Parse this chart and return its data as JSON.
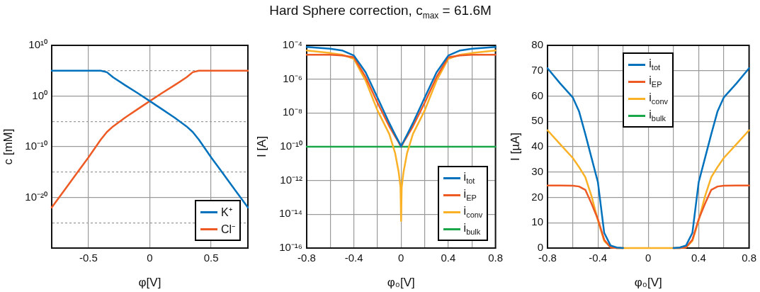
{
  "chart_data": [
    {
      "type": "line",
      "xlabel": "φ[V]",
      "ylabel": "c [mM]",
      "log": "y",
      "grid": true,
      "legend": "bottom right",
      "x": [
        -0.8,
        -0.7,
        -0.6,
        -0.5,
        -0.4,
        -0.35,
        -0.3,
        -0.2,
        -0.1,
        0,
        0.1,
        0.2,
        0.3,
        0.35,
        0.4,
        0.5,
        0.6,
        0.7,
        0.8
      ],
      "xlim": [
        -0.8,
        0.8
      ],
      "xticks": [
        -0.5,
        0,
        0.5
      ],
      "ylim": [
        1e-30,
        10000000000.0
      ],
      "yticks": [
        {
          "value": 10000000000.0,
          "label": "10¹⁰"
        },
        {
          "value": 100000.0,
          "label": null
        },
        {
          "value": 1,
          "label": "10⁰"
        },
        {
          "value": 1e-05,
          "label": null
        },
        {
          "value": 1e-10,
          "label": "10⁻¹⁰"
        },
        {
          "value": 1e-15,
          "label": null
        },
        {
          "value": 1e-20,
          "label": "10⁻²⁰"
        },
        {
          "value": 1e-25,
          "label": null
        }
      ],
      "series": [
        {
          "name": "K⁺",
          "color": "#0072bd",
          "values": [
            100000.0,
            100000.0,
            100000.0,
            100000.0,
            100000.0,
            50000.0,
            5000.0,
            130,
            4,
            0.1,
            0.0025,
            6e-05,
            1e-06,
            8e-08,
            2.5e-09,
            8e-13,
            4e-16,
            2e-19,
            1e-22
          ]
        },
        {
          "name": "Cl⁻",
          "color": "#ee5a24",
          "values": [
            1e-22,
            2e-19,
            4e-16,
            8e-13,
            2.5e-09,
            8e-08,
            1e-06,
            6e-05,
            0.0025,
            0.1,
            4,
            130,
            5000.0,
            50000.0,
            100000.0,
            100000.0,
            100000.0,
            100000.0,
            100000.0
          ]
        }
      ]
    },
    {
      "type": "line",
      "title": "Hard Sphere correction, c$_{max}$ = 61.6M",
      "xlabel": "φ₀[V]",
      "ylabel": "I [A]",
      "log": "y",
      "grid": true,
      "legend": "bottom right",
      "x": [
        -0.8,
        -0.6,
        -0.5,
        -0.4,
        -0.3,
        -0.2,
        -0.1,
        -0.05,
        -0.02,
        -0.005,
        0,
        0.005,
        0.02,
        0.05,
        0.1,
        0.2,
        0.3,
        0.4,
        0.5,
        0.6,
        0.8
      ],
      "xlim": [
        -0.8,
        0.8
      ],
      "xticks": [
        -0.8,
        {
          "value": -0.6,
          "label": null
        },
        -0.4,
        {
          "value": -0.2,
          "label": null
        },
        0,
        {
          "value": 0.2,
          "label": null
        },
        0.4,
        {
          "value": 0.6,
          "label": null
        },
        0.8
      ],
      "ylim": [
        1e-16,
        0.0001
      ],
      "yticks": [
        {
          "value": 0.0001,
          "label": "10⁻⁴"
        },
        {
          "value": 1e-06,
          "label": "10⁻⁶"
        },
        {
          "value": 1e-08,
          "label": "10⁻⁸"
        },
        {
          "value": 1e-10,
          "label": "10⁻¹⁰"
        },
        {
          "value": 1e-12,
          "label": "10⁻¹²"
        },
        {
          "value": 1e-14,
          "label": "10⁻¹⁴"
        },
        {
          "value": 1e-16,
          "label": "10⁻¹⁶"
        }
      ],
      "series": [
        {
          "name": "i$_{tot}$",
          "color": "#0072bd",
          "values": [
            8e-05,
            6.3e-05,
            5e-05,
            2.5e-05,
            2.5e-06,
            8e-08,
            2.5e-09,
            5e-10,
            2e-10,
            1.3e-10,
            1e-10,
            1.3e-10,
            2e-10,
            5e-10,
            2.5e-09,
            8e-08,
            2.5e-06,
            2.5e-05,
            5e-05,
            6.3e-05,
            8e-05
          ]
        },
        {
          "name": "i$_{EP}$",
          "color": "#ee5a24",
          "values": [
            2.8e-05,
            2.8e-05,
            2.5e-05,
            2e-05,
            1.3e-06,
            4e-08,
            1.6e-09,
            4e-10,
            1.8e-10,
            1.1e-10,
            1e-10,
            1.1e-10,
            1.8e-10,
            4e-10,
            1.6e-09,
            4e-08,
            1.3e-06,
            2e-05,
            2.5e-05,
            2.8e-05,
            2.8e-05
          ]
        },
        {
          "name": "i$_{conv}$",
          "color": "#fbb125",
          "values": [
            5e-05,
            3.5e-05,
            2.8e-05,
            1.6e-05,
            8e-07,
            1.4e-08,
            5.6e-10,
            4e-11,
            3e-12,
            4e-13,
            4e-15,
            4e-13,
            3e-12,
            4e-11,
            5.6e-10,
            1.4e-08,
            8e-07,
            1.6e-05,
            2.8e-05,
            3.5e-05,
            5e-05
          ]
        },
        {
          "name": "i$_{bulk}$",
          "color": "#1ca64a",
          "values": [
            1e-10,
            1e-10,
            1e-10,
            1e-10,
            1e-10,
            1e-10,
            1e-10,
            1e-10,
            1e-10,
            1e-10,
            1e-10,
            1e-10,
            1e-10,
            1e-10,
            1e-10,
            1e-10,
            1e-10,
            1e-10,
            1e-10,
            1e-10,
            1e-10
          ]
        }
      ]
    },
    {
      "type": "line",
      "xlabel": "φ₀[V]",
      "ylabel": "I [µA]",
      "grid": true,
      "legend": "top",
      "x": [
        -0.8,
        -0.7,
        -0.6,
        -0.55,
        -0.5,
        -0.45,
        -0.4,
        -0.35,
        -0.3,
        -0.25,
        -0.2,
        0,
        0.2,
        0.25,
        0.3,
        0.35,
        0.4,
        0.45,
        0.5,
        0.55,
        0.6,
        0.7,
        0.8
      ],
      "xlim": [
        -0.8,
        0.8
      ],
      "xticks": [
        -0.8,
        {
          "value": -0.6,
          "label": null
        },
        -0.4,
        {
          "value": -0.2,
          "label": null
        },
        0,
        {
          "value": 0.2,
          "label": null
        },
        0.4,
        {
          "value": 0.6,
          "label": null
        },
        0.8
      ],
      "ylim": [
        0,
        80
      ],
      "yticks": [
        0,
        10,
        20,
        30,
        40,
        50,
        60,
        70,
        80
      ],
      "series": [
        {
          "name": "i$_{tot}$",
          "color": "#0072bd",
          "values": [
            71,
            65,
            59.5,
            54,
            45,
            35.5,
            26,
            6,
            1,
            0.2,
            0,
            null,
            0,
            0.2,
            1,
            6,
            26,
            35.5,
            45,
            54,
            59.5,
            65,
            71
          ]
        },
        {
          "name": "i$_{EP}$",
          "color": "#ee5a24",
          "values": [
            24.7,
            24.7,
            24.6,
            24.3,
            23,
            17.5,
            11.4,
            3.3,
            0.3,
            0,
            0,
            null,
            0,
            0,
            0.3,
            3.3,
            11.4,
            17.5,
            23,
            24.3,
            24.6,
            24.7,
            24.7
          ]
        },
        {
          "name": "i$_{conv}$",
          "color": "#fbb125",
          "values": [
            46.5,
            41,
            35.6,
            32,
            28,
            20.4,
            10.9,
            2.8,
            0.3,
            0,
            0,
            0,
            0,
            0,
            0.3,
            2.8,
            10.9,
            20.4,
            28,
            32,
            35.6,
            41,
            46.5
          ]
        },
        {
          "name": "i$_{bulk}$",
          "color": "#1ca64a",
          "values": [
            null,
            null,
            null,
            null,
            null,
            null,
            null,
            null,
            null,
            null,
            null,
            null,
            null,
            null,
            null,
            null,
            null,
            null,
            null,
            null,
            null,
            null,
            null
          ]
        }
      ]
    }
  ]
}
